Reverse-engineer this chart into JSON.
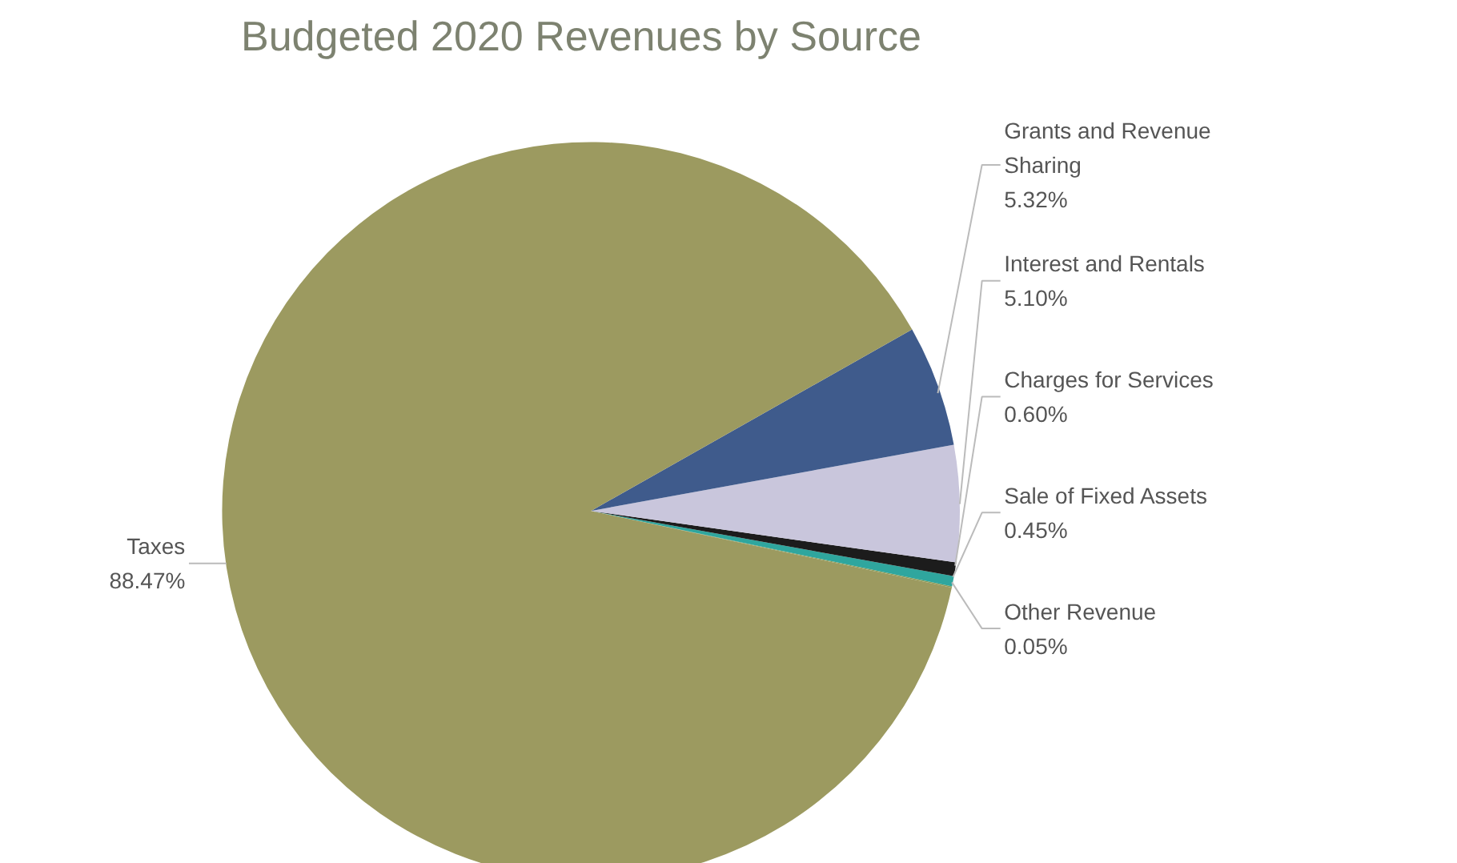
{
  "chart_data": {
    "type": "pie",
    "title": "Budgeted 2020 Revenues by Source",
    "categories": [
      "Other Revenue",
      "Sale of Fixed Assets",
      "Charges for Services",
      "Interest and Rentals",
      "Grants and Revenue Sharing",
      "Taxes"
    ],
    "values": [
      0.05,
      0.45,
      0.6,
      5.1,
      5.32,
      88.47
    ],
    "colors": [
      "#8f9a52",
      "#2fa69e",
      "#1c1c1c",
      "#c9c6dc",
      "#3f5b8c",
      "#9c9a60"
    ],
    "value_labels": [
      "0.05%",
      "0.45%",
      "0.60%",
      "5.10%",
      "5.32%",
      "88.47%"
    ]
  }
}
